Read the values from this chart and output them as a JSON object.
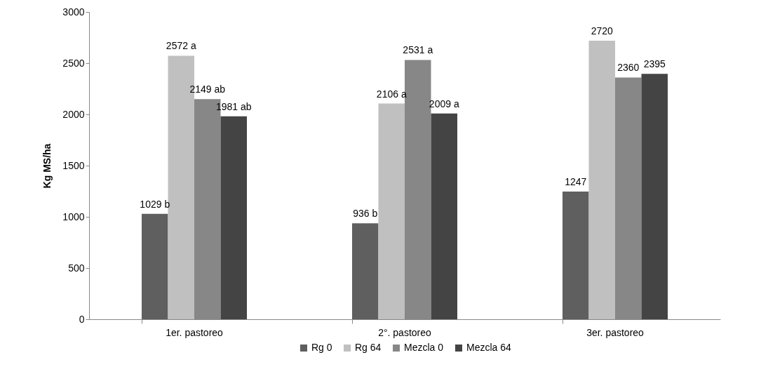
{
  "chart_data": {
    "type": "bar",
    "ylabel": "Kg MS/ha",
    "categories": [
      "1er. pastoreo",
      "2°. pastoreo",
      "3er. pastoreo"
    ],
    "ylim": [
      0,
      3000
    ],
    "yticks": [
      0,
      500,
      1000,
      1500,
      2000,
      2500,
      3000
    ],
    "grid": false,
    "legend": "bottom",
    "series": [
      {
        "name": "Rg 0",
        "color": "#5f5f5f",
        "values": [
          1029,
          936,
          1247
        ],
        "value_labels": [
          "1029 b",
          "936 b",
          "1247"
        ]
      },
      {
        "name": "Rg 64",
        "color": "#c0c0c0",
        "values": [
          2572,
          2106,
          2720
        ],
        "value_labels": [
          "2572 a",
          "2106 a",
          "2720"
        ]
      },
      {
        "name": "Mezcla 0",
        "color": "#878787",
        "values": [
          2149,
          2531,
          2360
        ],
        "value_labels": [
          "2149 ab",
          "2531 a",
          "2360"
        ]
      },
      {
        "name": "Mezcla 64",
        "color": "#444444",
        "values": [
          1981,
          2009,
          2395
        ],
        "value_labels": [
          "1981 ab",
          "2009 a",
          "2395"
        ]
      }
    ]
  }
}
